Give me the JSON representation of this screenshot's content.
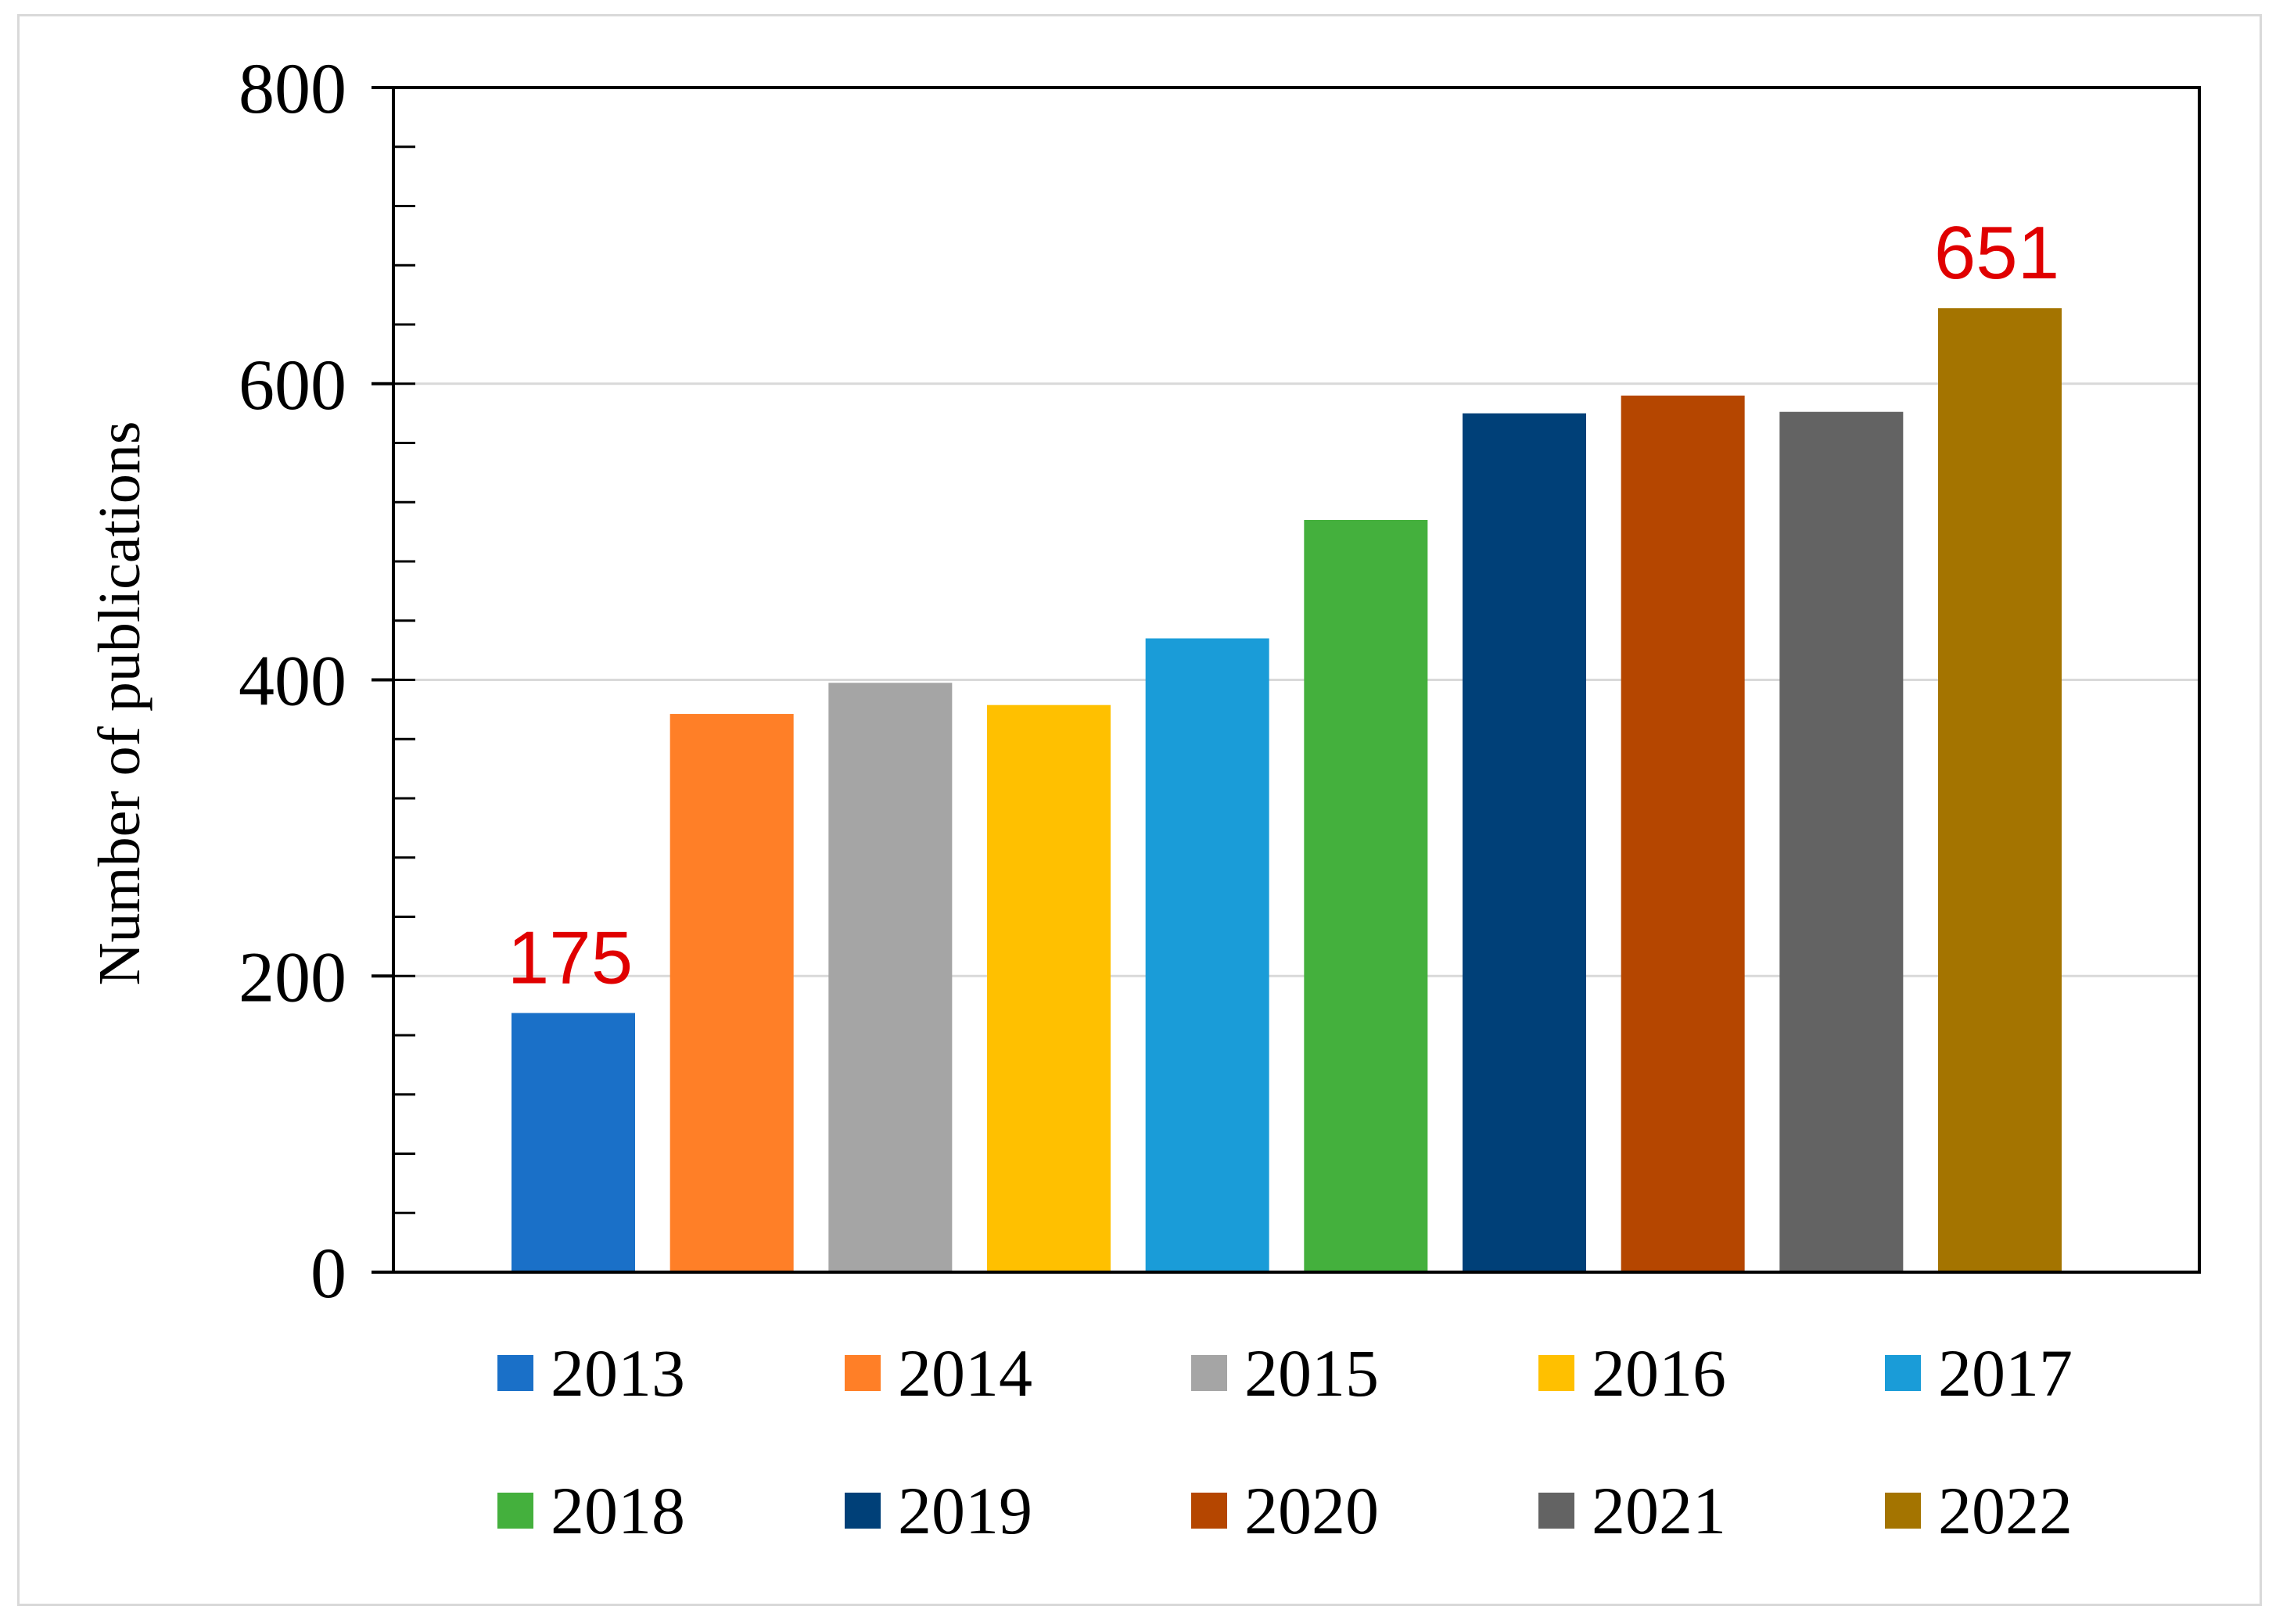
{
  "chart_data": {
    "type": "bar",
    "categories": [
      "2013",
      "2014",
      "2015",
      "2016",
      "2017",
      "2018",
      "2019",
      "2020",
      "2021",
      "2022"
    ],
    "values": [
      175,
      377,
      398,
      383,
      428,
      508,
      580,
      592,
      581,
      651
    ],
    "colors": [
      "#1a70c8",
      "#ff7f27",
      "#a5a5a5",
      "#ffc000",
      "#1a9cd8",
      "#44b03d",
      "#004078",
      "#b54600",
      "#636363",
      "#a47400"
    ],
    "title": "",
    "xlabel": "",
    "ylabel": "Number of publications",
    "ylim": [
      0,
      800
    ],
    "yticks": [
      "0",
      "200",
      "400",
      "600",
      "800"
    ],
    "grid": true,
    "legend_position": "bottom",
    "data_labels": [
      {
        "category": "2013",
        "text": "175",
        "color": "#e00000"
      },
      {
        "category": "2022",
        "text": "651",
        "color": "#e00000"
      }
    ]
  }
}
